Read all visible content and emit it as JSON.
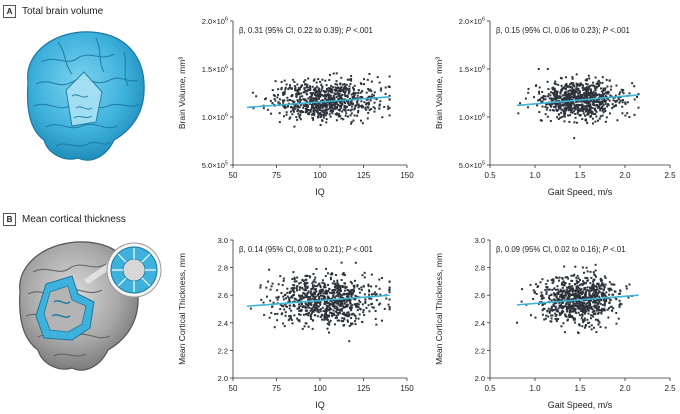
{
  "panels": [
    {
      "letter": "A",
      "title": "Total brain volume"
    },
    {
      "letter": "B",
      "title": "Mean cortical thickness"
    }
  ],
  "colors": {
    "points": "#2b333b",
    "fit": "#3bb4d8",
    "brain_blue": "#3eb1dc",
    "brain_gray": "#9a9a9a",
    "axis": "#333333"
  },
  "chart_data": [
    {
      "type": "scatter",
      "panel": "A",
      "annotation": {
        "prefix": "β, 0.31 (95% CI, 0.22 to 0.39); ",
        "p_italic": "P",
        "suffix": " <.001"
      },
      "xlabel": "IQ",
      "ylabel": "Brain Volume, mm³",
      "xlim": [
        50,
        150
      ],
      "ylim": [
        500000,
        2000000
      ],
      "x_ticks": [
        50,
        75,
        100,
        125,
        150
      ],
      "x_tick_labels": [
        "50",
        "75",
        "100",
        "125",
        "150"
      ],
      "y_ticks": [
        500000,
        1000000,
        1500000,
        2000000
      ],
      "y_tick_labels": [
        {
          "mant": "5.0×10",
          "exp": "5"
        },
        {
          "mant": "1.0×10",
          "exp": "6"
        },
        {
          "mant": "1.5×10",
          "exp": "6"
        },
        {
          "mant": "2.0×10",
          "exp": "6"
        }
      ],
      "point_cloud": {
        "n": 800,
        "x_mean": 103,
        "x_sd": 15,
        "x_range": [
          57,
          140
        ],
        "y_mean": 1180000,
        "y_sd": 100000,
        "y_range": [
          900000,
          1500000
        ]
      },
      "fit_line": {
        "x": [
          58,
          140
        ],
        "y": [
          1100000,
          1210000
        ]
      }
    },
    {
      "type": "scatter",
      "panel": "A",
      "annotation": {
        "prefix": "β, 0.15 (95% CI, 0.06 to 0.23); ",
        "p_italic": "P",
        "suffix": " <.001"
      },
      "xlabel": "Gait Speed, m/s",
      "ylabel": "Brain Volume, mm³",
      "xlim": [
        0.5,
        2.5
      ],
      "ylim": [
        500000,
        2000000
      ],
      "x_ticks": [
        0.5,
        1.0,
        1.5,
        2.0,
        2.5
      ],
      "x_tick_labels": [
        "0.5",
        "1.0",
        "1.5",
        "2.0",
        "2.5"
      ],
      "y_ticks": [
        500000,
        1000000,
        1500000,
        2000000
      ],
      "y_tick_labels": [
        {
          "mant": "5.0×10",
          "exp": "5"
        },
        {
          "mant": "1.0×10",
          "exp": "6"
        },
        {
          "mant": "1.5×10",
          "exp": "6"
        },
        {
          "mant": "2.0×10",
          "exp": "6"
        }
      ],
      "point_cloud": {
        "n": 800,
        "x_mean": 1.5,
        "x_sd": 0.22,
        "x_range": [
          0.8,
          2.15
        ],
        "y_mean": 1180000,
        "y_sd": 100000,
        "y_range": [
          780000,
          1500000
        ]
      },
      "fit_line": {
        "x": [
          0.8,
          2.15
        ],
        "y": [
          1120000,
          1230000
        ]
      }
    },
    {
      "type": "scatter",
      "panel": "B",
      "annotation": {
        "prefix": "β, 0.14 (95% CI, 0.08 to 0.21); ",
        "p_italic": "P",
        "suffix": " <.001"
      },
      "xlabel": "IQ",
      "ylabel": "Mean Cortical Thickness, mm",
      "xlim": [
        50,
        150
      ],
      "ylim": [
        2.0,
        3.0
      ],
      "x_ticks": [
        50,
        75,
        100,
        125,
        150
      ],
      "x_tick_labels": [
        "50",
        "75",
        "100",
        "125",
        "150"
      ],
      "y_ticks": [
        2.0,
        2.2,
        2.4,
        2.6,
        2.8,
        3.0
      ],
      "y_tick_labels": [
        "2.0",
        "2.2",
        "2.4",
        "2.6",
        "2.8",
        "3.0"
      ],
      "point_cloud": {
        "n": 800,
        "x_mean": 103,
        "x_sd": 15,
        "x_range": [
          57,
          140
        ],
        "y_mean": 2.57,
        "y_sd": 0.09,
        "y_range": [
          2.25,
          2.85
        ]
      },
      "fit_line": {
        "x": [
          58,
          140
        ],
        "y": [
          2.52,
          2.6
        ]
      }
    },
    {
      "type": "scatter",
      "panel": "B",
      "annotation": {
        "prefix": "β, 0.09 (95% CI, 0.02 to 0.16); ",
        "p_italic": "P",
        "suffix": " <.01"
      },
      "xlabel": "Gait Speed, m/s",
      "ylabel": "Mean Cortical Thickness, mm",
      "xlim": [
        0.5,
        2.5
      ],
      "ylim": [
        2.0,
        3.0
      ],
      "x_ticks": [
        0.5,
        1.0,
        1.5,
        2.0,
        2.5
      ],
      "x_tick_labels": [
        "0.5",
        "1.0",
        "1.5",
        "2.0",
        "2.5"
      ],
      "y_ticks": [
        2.0,
        2.2,
        2.4,
        2.6,
        2.8,
        3.0
      ],
      "y_tick_labels": [
        "2.0",
        "2.2",
        "2.4",
        "2.6",
        "2.8",
        "3.0"
      ],
      "point_cloud": {
        "n": 800,
        "x_mean": 1.5,
        "x_sd": 0.22,
        "x_range": [
          0.8,
          2.15
        ],
        "y_mean": 2.57,
        "y_sd": 0.09,
        "y_range": [
          2.25,
          2.85
        ]
      },
      "fit_line": {
        "x": [
          0.8,
          2.15
        ],
        "y": [
          2.53,
          2.6
        ]
      }
    }
  ]
}
